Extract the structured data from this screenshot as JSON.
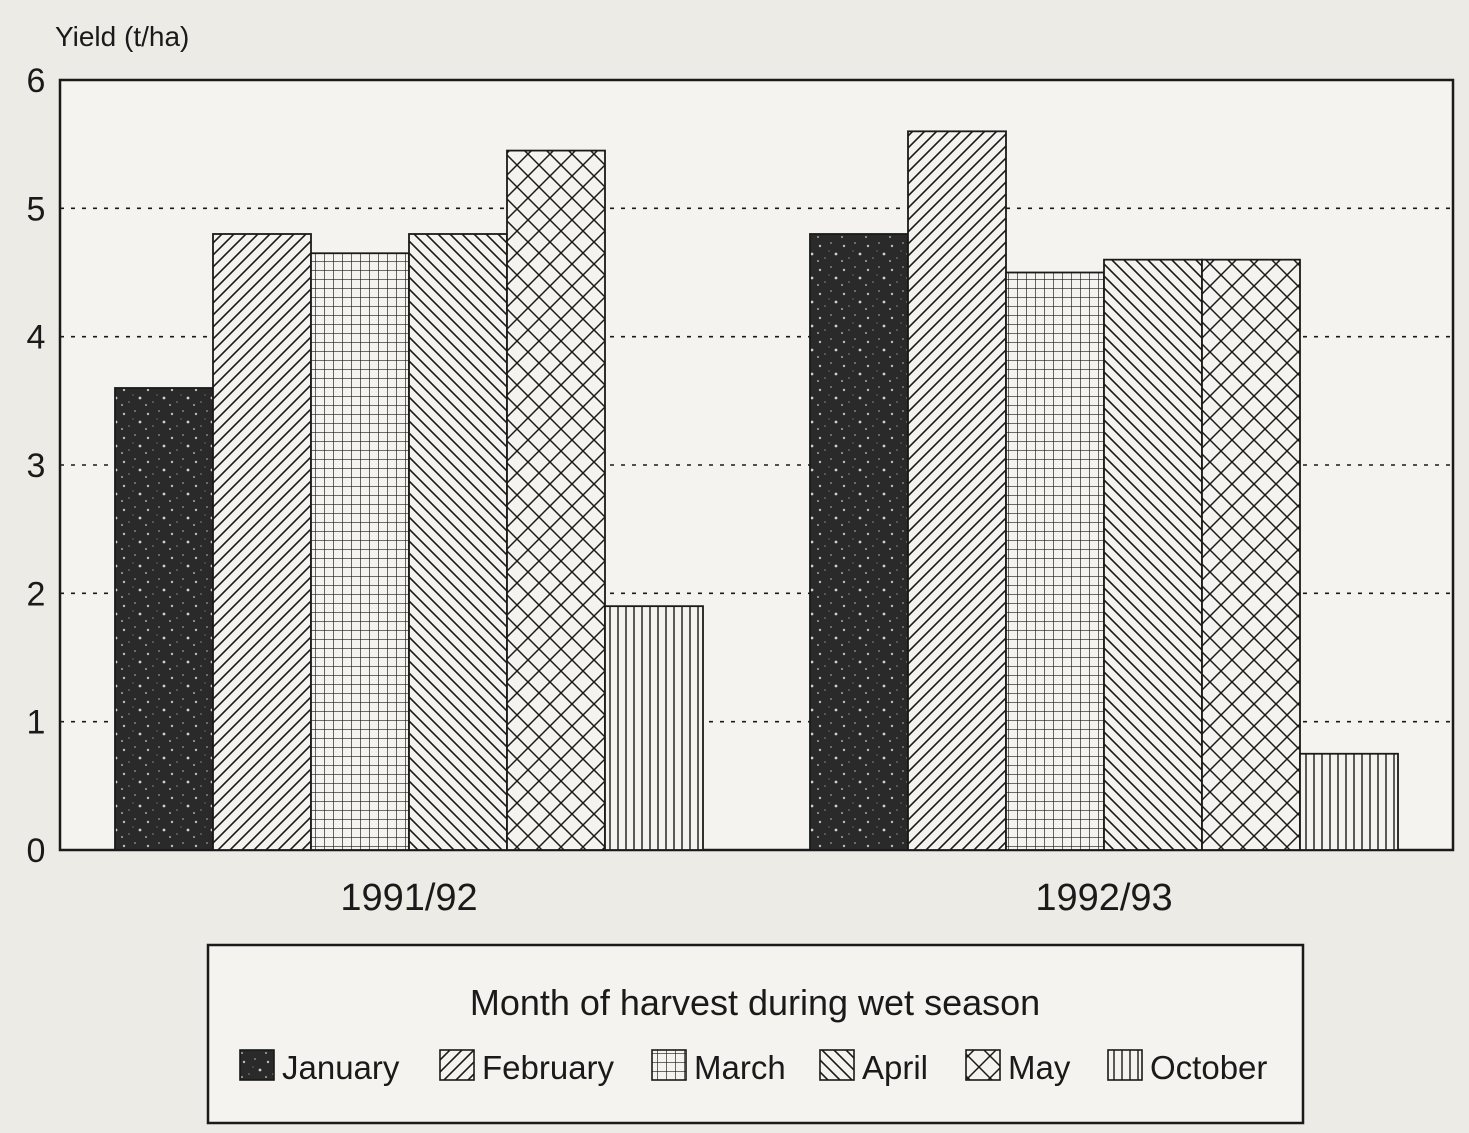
{
  "chart_data": {
    "type": "bar",
    "ylabel": "Yield (t/ha)",
    "ylim": [
      0,
      6
    ],
    "yticks": [
      "0",
      "1",
      "2",
      "3",
      "4",
      "5",
      "6"
    ],
    "grid": "dotted horizontal",
    "categories": [
      "1991/92",
      "1992/93"
    ],
    "legend_title": "Month of harvest during wet season",
    "legend_placement": "bottom",
    "series": [
      {
        "name": "January",
        "values": [
          3.6,
          4.8
        ],
        "pattern": "dark-speckle"
      },
      {
        "name": "February",
        "values": [
          4.8,
          5.6
        ],
        "pattern": "diagonal-up"
      },
      {
        "name": "March",
        "values": [
          4.65,
          4.5
        ],
        "pattern": "grid"
      },
      {
        "name": "April",
        "values": [
          4.8,
          4.6
        ],
        "pattern": "diagonal-down"
      },
      {
        "name": "May",
        "values": [
          5.45,
          4.6
        ],
        "pattern": "crosshatch"
      },
      {
        "name": "October",
        "values": [
          1.9,
          0.75
        ],
        "pattern": "vertical"
      }
    ],
    "colors": {
      "ink": "#1a1a1a",
      "paper": "#ecebe6"
    }
  }
}
